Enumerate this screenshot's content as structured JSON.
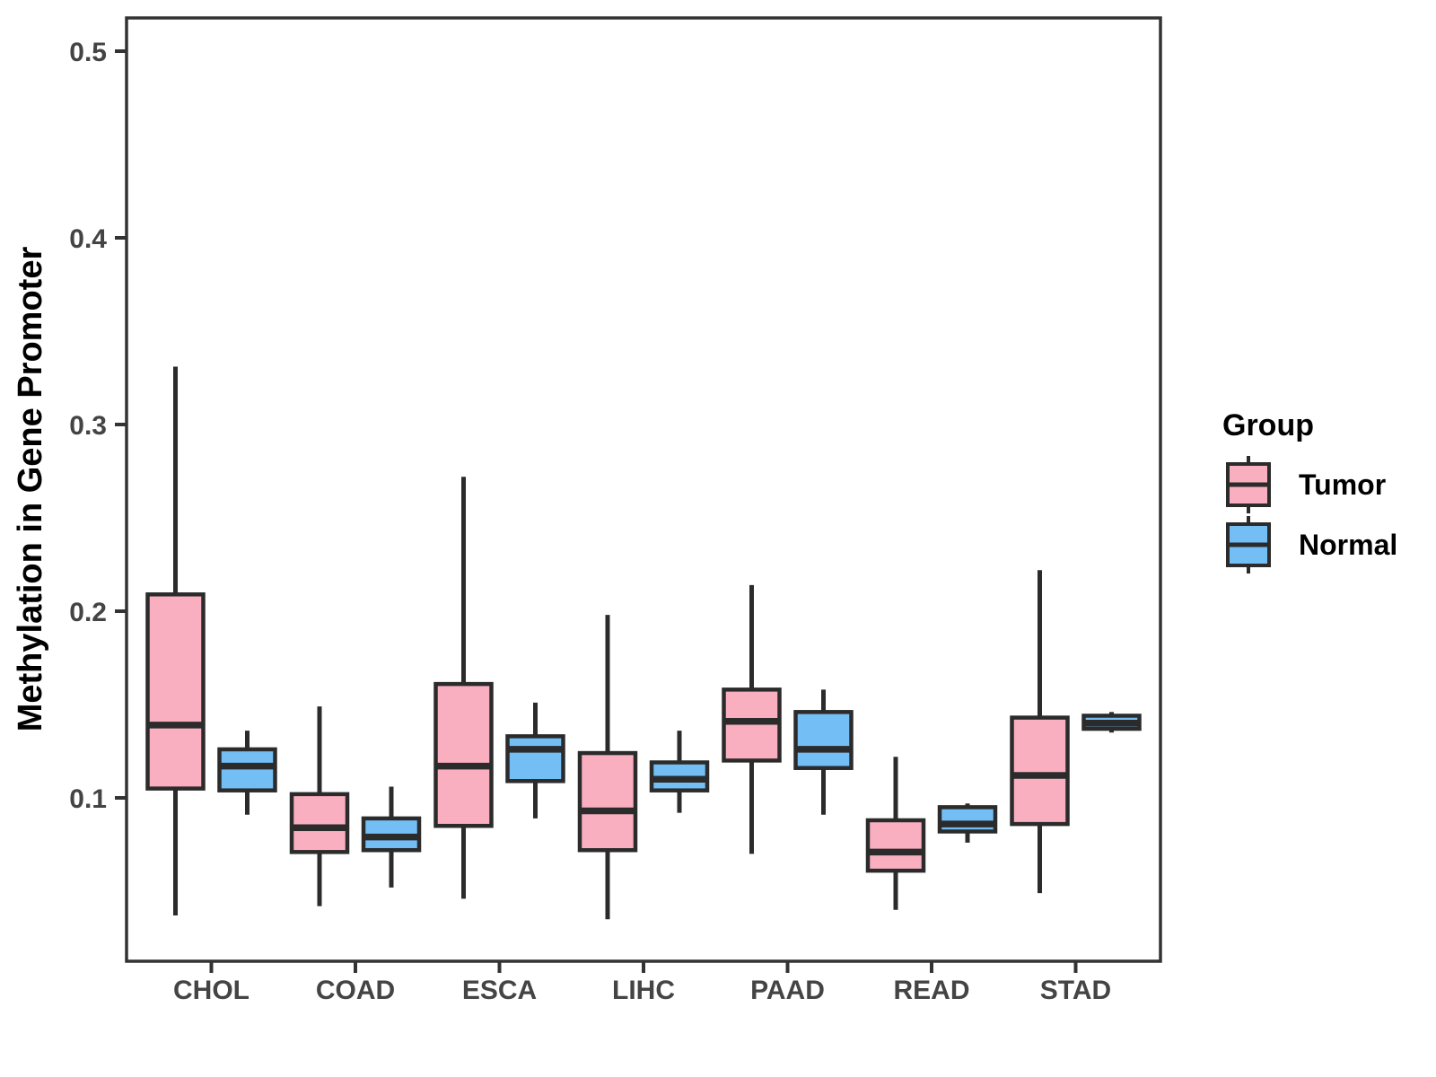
{
  "figure": {
    "background": "#FFFFFF",
    "y_axis": {
      "title": "Methylation in Gene Promoter",
      "tick_labels": [
        "0.1",
        "0.2",
        "0.3",
        "0.4",
        "0.5"
      ],
      "tick_values": [
        0.1,
        0.2,
        0.3,
        0.4,
        0.5
      ]
    },
    "x_axis": {
      "categories": [
        "CHOL",
        "COAD",
        "ESCA",
        "LIHC",
        "PAAD",
        "READ",
        "STAD"
      ]
    },
    "legend": {
      "title": "Group",
      "entries": [
        {
          "label": "Tumor",
          "color": "#FAAFC1"
        },
        {
          "label": "Normal",
          "color": "#73BEF4"
        }
      ]
    },
    "colors": {
      "box_border": "#2B2B2B",
      "median_line": "#2B2B2B",
      "whisker": "#2B2B2B",
      "panel_border": "#333333",
      "tick_label": "#444444",
      "axis_title": "#000000",
      "tumor_fill": "#FAAFC1",
      "normal_fill": "#73BEF4"
    }
  },
  "chart_data": {
    "type": "grouped_boxplot",
    "title": "",
    "xlabel": "",
    "ylabel": "Methylation in Gene Promoter",
    "ylim": [
      0.013,
      0.518
    ],
    "yticks": [
      0.1,
      0.2,
      0.3,
      0.4,
      0.5
    ],
    "grid": false,
    "legend_position": "right",
    "categories": [
      "CHOL",
      "COAD",
      "ESCA",
      "LIHC",
      "PAAD",
      "READ",
      "STAD"
    ],
    "series": [
      {
        "name": "Tumor",
        "color": "#FAAFC1",
        "boxes": [
          {
            "category": "CHOL",
            "whisker_low": 0.037,
            "q1": 0.105,
            "median": 0.139,
            "q3": 0.209,
            "whisker_high": 0.331
          },
          {
            "category": "COAD",
            "whisker_low": 0.042,
            "q1": 0.071,
            "median": 0.084,
            "q3": 0.102,
            "whisker_high": 0.149
          },
          {
            "category": "ESCA",
            "whisker_low": 0.046,
            "q1": 0.085,
            "median": 0.117,
            "q3": 0.161,
            "whisker_high": 0.272
          },
          {
            "category": "LIHC",
            "whisker_low": 0.035,
            "q1": 0.072,
            "median": 0.093,
            "q3": 0.124,
            "whisker_high": 0.198
          },
          {
            "category": "PAAD",
            "whisker_low": 0.07,
            "q1": 0.12,
            "median": 0.141,
            "q3": 0.158,
            "whisker_high": 0.214
          },
          {
            "category": "READ",
            "whisker_low": 0.04,
            "q1": 0.061,
            "median": 0.071,
            "q3": 0.088,
            "whisker_high": 0.122
          },
          {
            "category": "STAD",
            "whisker_low": 0.049,
            "q1": 0.086,
            "median": 0.112,
            "q3": 0.143,
            "whisker_high": 0.222
          }
        ]
      },
      {
        "name": "Normal",
        "color": "#73BEF4",
        "boxes": [
          {
            "category": "CHOL",
            "whisker_low": 0.091,
            "q1": 0.104,
            "median": 0.117,
            "q3": 0.126,
            "whisker_high": 0.136
          },
          {
            "category": "COAD",
            "whisker_low": 0.052,
            "q1": 0.072,
            "median": 0.079,
            "q3": 0.089,
            "whisker_high": 0.106
          },
          {
            "category": "ESCA",
            "whisker_low": 0.089,
            "q1": 0.109,
            "median": 0.126,
            "q3": 0.133,
            "whisker_high": 0.151
          },
          {
            "category": "LIHC",
            "whisker_low": 0.092,
            "q1": 0.104,
            "median": 0.11,
            "q3": 0.119,
            "whisker_high": 0.136
          },
          {
            "category": "PAAD",
            "whisker_low": 0.091,
            "q1": 0.116,
            "median": 0.126,
            "q3": 0.146,
            "whisker_high": 0.158
          },
          {
            "category": "READ",
            "whisker_low": 0.076,
            "q1": 0.082,
            "median": 0.086,
            "q3": 0.095,
            "whisker_high": 0.097
          },
          {
            "category": "STAD",
            "whisker_low": 0.135,
            "q1": 0.137,
            "median": 0.14,
            "q3": 0.144,
            "whisker_high": 0.146
          }
        ]
      }
    ]
  }
}
